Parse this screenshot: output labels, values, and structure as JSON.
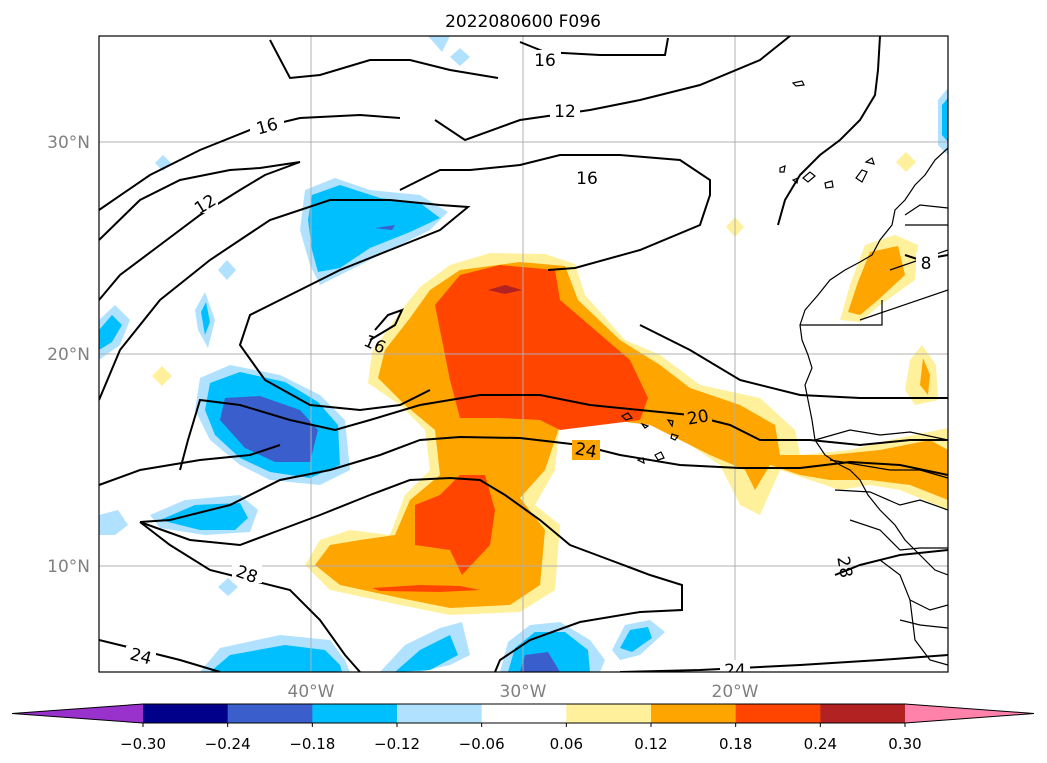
{
  "title": "2022080600 F096",
  "lat_labels": [
    "30°N",
    "20°N",
    "10°N"
  ],
  "lon_labels": [
    "40°W",
    "30°W",
    "20°W"
  ],
  "colorbar": {
    "ticks": [
      "−0.30",
      "−0.24",
      "−0.18",
      "−0.12",
      "−0.06",
      "0.06",
      "0.12",
      "0.18",
      "0.24",
      "0.30"
    ],
    "colors": [
      "#9932cc",
      "#00008b",
      "#3a5fcd",
      "#00bfff",
      "#b0e2ff",
      "#ffffff",
      "#fff09b",
      "#ffa500",
      "#ff4500",
      "#b22222",
      "#ff82ab"
    ]
  },
  "contour_labels": [
    "16",
    "16",
    "12",
    "12",
    "16",
    "16",
    "20",
    "24",
    "28",
    "24",
    "24",
    "8",
    "28"
  ],
  "colors": {
    "lightblue": "#b0e2ff",
    "blue": "#00bfff",
    "darkblue": "#3a5fcd",
    "yellow": "#fff09b",
    "orange": "#ffa500",
    "redorange": "#ff4500",
    "darkred": "#b22222"
  }
}
